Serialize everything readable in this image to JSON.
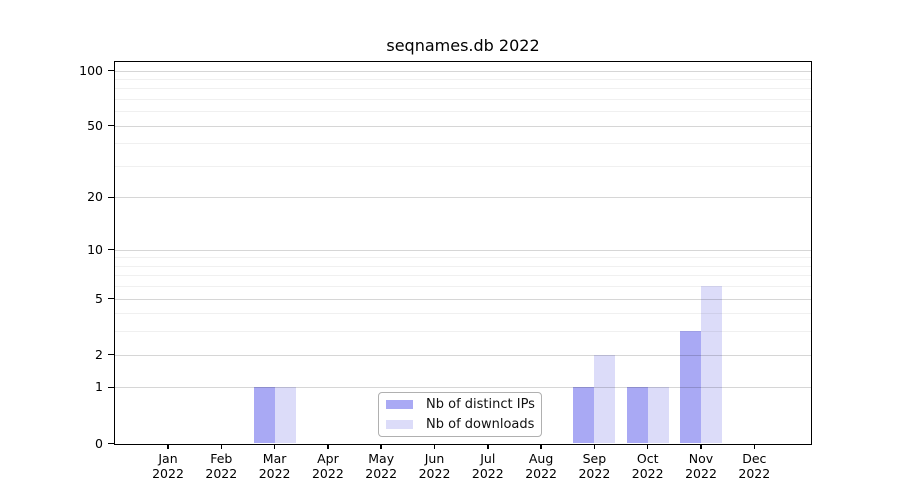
{
  "title": "seqnames.db 2022",
  "colors": {
    "series_distinct_ips": "#a9a9f4",
    "series_downloads": "#dcdcf9",
    "axis": "#000000",
    "major_gridline": "#d6d6d6",
    "minor_gridline": "#efefef",
    "legend_border": "#b0b0b0"
  },
  "chart_data": {
    "type": "bar",
    "title": "seqnames.db 2022",
    "categories": [
      "Jan",
      "Feb",
      "Mar",
      "Apr",
      "May",
      "Jun",
      "Jul",
      "Aug",
      "Sep",
      "Oct",
      "Nov",
      "Dec"
    ],
    "year": "2022",
    "series": [
      {
        "name": "Nb of distinct IPs",
        "color": "#a9a9f4",
        "values": [
          0,
          0,
          1,
          0,
          0,
          0,
          0,
          0,
          1,
          1,
          3,
          0
        ]
      },
      {
        "name": "Nb of downloads",
        "color": "#dcdcf9",
        "values": [
          0,
          0,
          1,
          0,
          0,
          0,
          0,
          0,
          2,
          1,
          6,
          0
        ]
      }
    ],
    "xlabel": "",
    "ylabel": "",
    "y_scale": "log1p",
    "y_ticks": [
      0,
      1,
      2,
      5,
      10,
      20,
      50,
      100
    ],
    "y_minor_gridlines": [
      3,
      4,
      6,
      7,
      8,
      9,
      30,
      40,
      60,
      70,
      80,
      90
    ],
    "ylim": [
      0,
      112
    ],
    "grid": true,
    "legend_position": "bottom-center"
  }
}
